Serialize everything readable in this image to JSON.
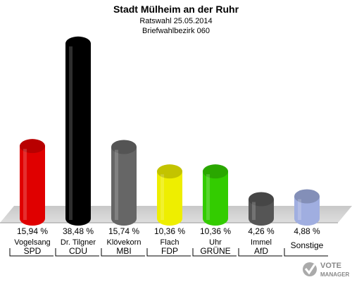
{
  "chart_data": {
    "type": "bar",
    "title": "Stadt Mülheim an der Ruhr",
    "subtitle1": "Ratswahl 25.05.2014",
    "subtitle2": "Briefwahlbezirk 060",
    "ylim": [
      0,
      40
    ],
    "categories": [
      "SPD",
      "CDU",
      "MBI",
      "FDP",
      "GRÜNE",
      "AfD",
      "Sonstige"
    ],
    "candidates": [
      "Vogelsang",
      "Dr. Tilgner",
      "Klövekorn",
      "Flach",
      "Uhr",
      "Immel",
      ""
    ],
    "values": [
      15.94,
      38.48,
      15.74,
      10.36,
      10.36,
      4.26,
      4.88
    ],
    "value_labels": [
      "15,94 %",
      "38,48 %",
      "15,74 %",
      "10,36 %",
      "10,36 %",
      "4,26 %",
      "4,88 %"
    ],
    "colors": [
      "#e00000",
      "#000000",
      "#666666",
      "#eeee00",
      "#33cc00",
      "#555555",
      "#a0aee0"
    ]
  },
  "logo": {
    "line1": "VOTE",
    "line2": "MANAGER"
  }
}
